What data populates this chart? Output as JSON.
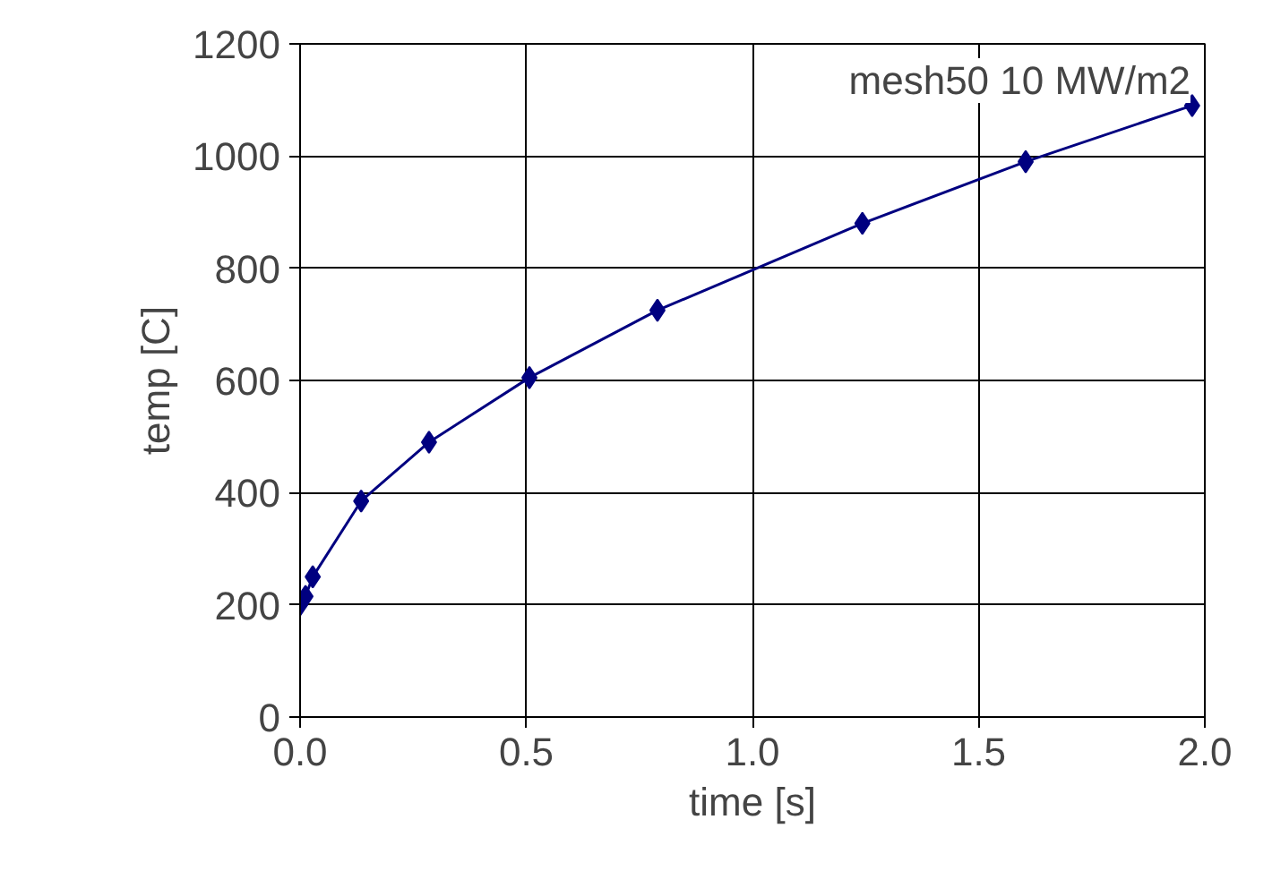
{
  "chart_data": {
    "type": "line",
    "xlabel": "time [s]",
    "ylabel": "temp [C]",
    "annotations": [
      "mesh50 10 MW/m2"
    ],
    "x": [
      0,
      0.012,
      0.028,
      0.135,
      0.285,
      0.507,
      0.79,
      1.243,
      1.604,
      1.972
    ],
    "series": [
      {
        "color": "#000080",
        "values": [
          200,
          215,
          250,
          385,
          490,
          605,
          725,
          880,
          990,
          1090
        ]
      }
    ],
    "xlim": [
      0,
      2.0
    ],
    "ylim": [
      0,
      1200
    ],
    "xticks": [
      {
        "value": 0,
        "label": "0.0"
      },
      {
        "value": 0.5,
        "label": "0.5"
      },
      {
        "value": 1.0,
        "label": "1.0"
      },
      {
        "value": 1.5,
        "label": "1.5"
      },
      {
        "value": 2.0,
        "label": "2.0"
      }
    ],
    "yticks": [
      0,
      200,
      400,
      600,
      800,
      1000,
      1200
    ],
    "grid": true,
    "marker": "diamond",
    "line_style": "solid"
  }
}
